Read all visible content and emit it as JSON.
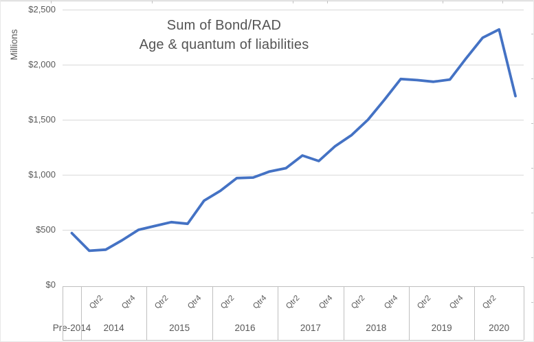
{
  "chart_data": {
    "type": "line",
    "title_line1": "Sum of Bond/RAD",
    "title_line2": "Age & quantum of liabilities",
    "ylabel": "Millions",
    "ylim": [
      0,
      2500
    ],
    "y_tick_interval": 500,
    "y_ticks": [
      {
        "label": "$2,500",
        "value": 2500
      },
      {
        "label": "$2,000",
        "value": 2000
      },
      {
        "label": "$1,500",
        "value": 1500
      },
      {
        "label": "$1,000",
        "value": 1000
      },
      {
        "label": "$500",
        "value": 500
      },
      {
        "label": "$0",
        "value": 0
      }
    ],
    "x_axis": {
      "groups": [
        {
          "year": "Pre-2014",
          "points": [
            470
          ],
          "quarter_labels": [
            ""
          ]
        },
        {
          "year": "2014",
          "points": [
            310,
            320,
            405,
            500
          ],
          "quarter_labels": [
            "",
            "Qtr2",
            "",
            "Qtr4"
          ]
        },
        {
          "year": "2015",
          "points": [
            535,
            570,
            555,
            765
          ],
          "quarter_labels": [
            "",
            "Qtr2",
            "",
            "Qtr4"
          ]
        },
        {
          "year": "2016",
          "points": [
            855,
            970,
            975,
            1030
          ],
          "quarter_labels": [
            "",
            "Qtr2",
            "",
            "Qtr4"
          ]
        },
        {
          "year": "2017",
          "points": [
            1060,
            1175,
            1125,
            1260
          ],
          "quarter_labels": [
            "",
            "Qtr2",
            "",
            "Qtr4"
          ]
        },
        {
          "year": "2018",
          "points": [
            1360,
            1500,
            1680,
            1870
          ],
          "quarter_labels": [
            "",
            "Qtr2",
            "",
            "Qtr4"
          ]
        },
        {
          "year": "2019",
          "points": [
            1860,
            1845,
            1865,
            2060
          ],
          "quarter_labels": [
            "",
            "Qtr2",
            "",
            "Qtr4"
          ]
        },
        {
          "year": "2020",
          "points": [
            2245,
            2320,
            1715
          ],
          "quarter_labels": [
            "",
            "Qtr2",
            ""
          ]
        }
      ]
    },
    "legend": "none",
    "grid": "horizontal",
    "line_color": "#4472C4",
    "gridline_color": "#D9D9D9",
    "axis_border_color": "#BFBFBF",
    "text_color": "#595959"
  }
}
